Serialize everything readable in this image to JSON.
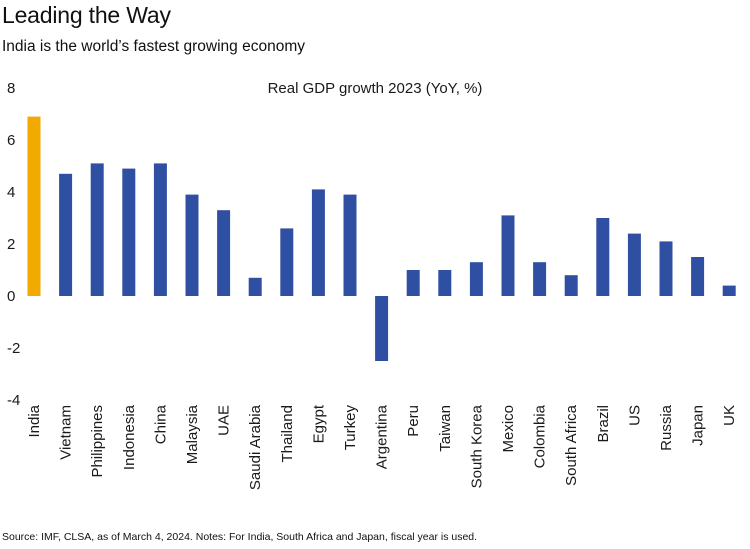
{
  "title": "Leading the Way",
  "subtitle": "India is the world’s fastest growing economy",
  "source": "Source: IMF, CLSA, as of March 4, 2024. Notes: For India, South Africa and Japan, fiscal year is used.",
  "chart_data": {
    "type": "bar",
    "title": "Real GDP growth 2023 (YoY, %)",
    "xlabel": "",
    "ylabel": "",
    "ylim": [
      -4,
      8
    ],
    "yticks": [
      8,
      6,
      4,
      2,
      0,
      -2,
      -4
    ],
    "grid": false,
    "categories": [
      "India",
      "Vietnam",
      "Philippines",
      "Indonesia",
      "China",
      "Malaysia",
      "UAE",
      "Saudi Arabia",
      "Thailand",
      "Egypt",
      "Turkey",
      "Argentina",
      "Peru",
      "Taiwan",
      "South Korea",
      "Mexico",
      "Colombia",
      "South Africa",
      "Brazil",
      "US",
      "Russia",
      "Japan",
      "UK"
    ],
    "values": [
      6.9,
      4.7,
      5.1,
      4.9,
      5.1,
      3.9,
      3.3,
      0.7,
      2.6,
      4.1,
      3.9,
      -2.5,
      1.0,
      1.0,
      1.3,
      3.1,
      1.3,
      0.8,
      3.0,
      2.4,
      2.1,
      1.5,
      0.4
    ],
    "highlight": "India",
    "colors": {
      "highlight": "#F2A900",
      "default": "#2F4FA2"
    }
  }
}
